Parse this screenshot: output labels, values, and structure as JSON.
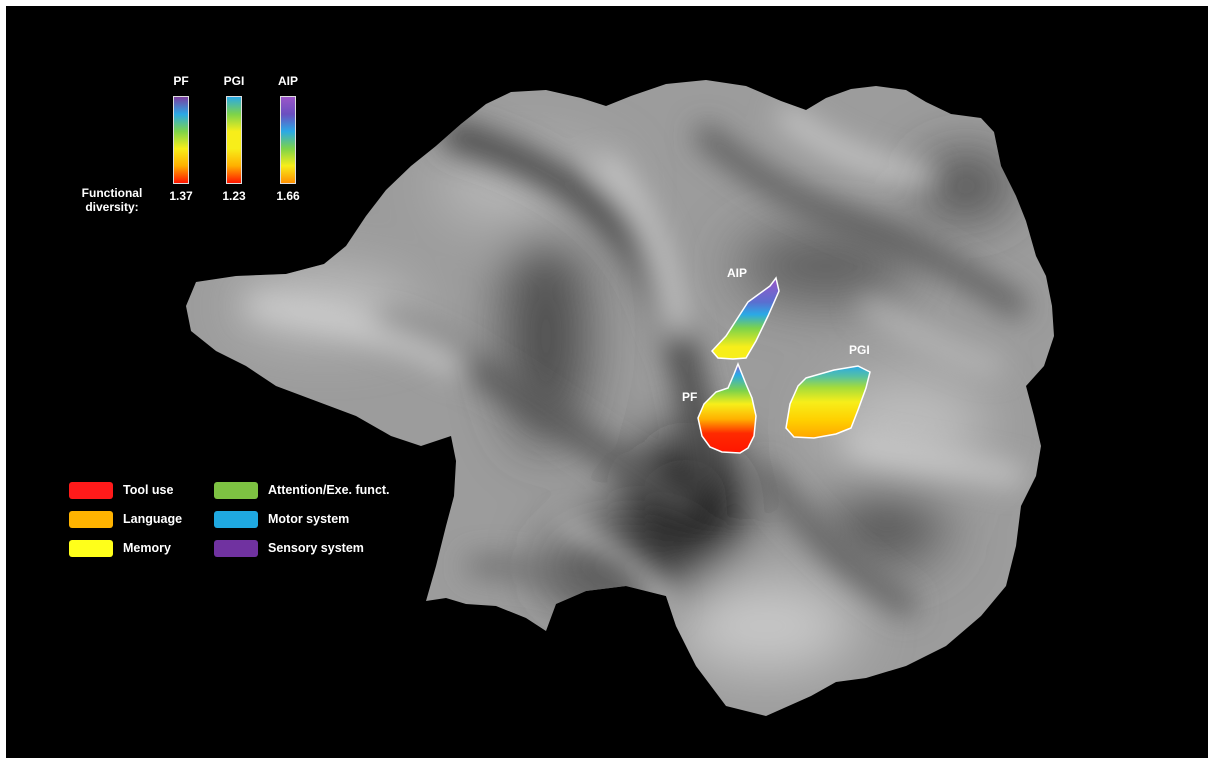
{
  "colorbars": {
    "heading": "Functional diversity:",
    "items": [
      {
        "name": "PF",
        "value": "1.37",
        "gradient": [
          "#7b3fa0",
          "#2aa9e6",
          "#7dd34a",
          "#f7ee1a",
          "#ffb000",
          "#ff1500"
        ]
      },
      {
        "name": "PGI",
        "value": "1.23",
        "gradient": [
          "#2aa9e6",
          "#7dd34a",
          "#f7ee1a",
          "#f7ee1a",
          "#ffb000",
          "#ff1500"
        ]
      },
      {
        "name": "AIP",
        "value": "1.66",
        "gradient": [
          "#9a55c8",
          "#6a4fc0",
          "#2aa9e6",
          "#7dd34a",
          "#f7ee1a",
          "#ff9000"
        ]
      }
    ]
  },
  "regions": {
    "aip": {
      "label": "AIP"
    },
    "pf": {
      "label": "PF"
    },
    "pgi": {
      "label": "PGI"
    }
  },
  "legend": [
    {
      "label": "Tool use",
      "color": "#ff1a1a"
    },
    {
      "label": "Language",
      "color": "#ffb300"
    },
    {
      "label": "Memory",
      "color": "#ffff1a"
    },
    {
      "label": "Attention/Exe. funct.",
      "color": "#7dc242"
    },
    {
      "label": "Motor system",
      "color": "#1fa8e0"
    },
    {
      "label": "Sensory system",
      "color": "#7032a0"
    }
  ]
}
